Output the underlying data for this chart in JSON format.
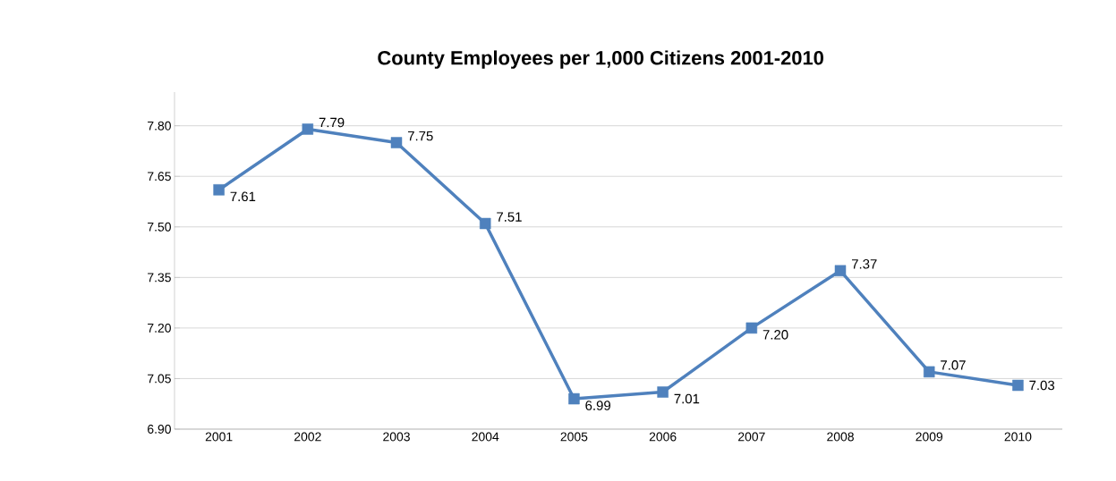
{
  "chart_data": {
    "type": "line",
    "title": "County Employees per 1,000 Citizens 2001-2010",
    "categories": [
      "2001",
      "2002",
      "2003",
      "2004",
      "2005",
      "2006",
      "2007",
      "2008",
      "2009",
      "2010"
    ],
    "values": [
      7.61,
      7.79,
      7.75,
      7.51,
      6.99,
      7.01,
      7.2,
      7.37,
      7.07,
      7.03
    ],
    "value_labels": [
      "7.61",
      "7.79",
      "7.75",
      "7.51",
      "6.99",
      "7.01",
      "7.20",
      "7.37",
      "7.07",
      "7.03"
    ],
    "color": "#4f81bd",
    "marker": "square",
    "line_style": "solid",
    "ylim": [
      6.9,
      7.9
    ],
    "yticks": [
      {
        "value": 6.9,
        "label": "6.90"
      },
      {
        "value": 7.05,
        "label": "7.05"
      },
      {
        "value": 7.2,
        "label": "7.20"
      },
      {
        "value": 7.35,
        "label": "7.35"
      },
      {
        "value": 7.5,
        "label": "7.50"
      },
      {
        "value": 7.65,
        "label": "7.65"
      },
      {
        "value": 7.8,
        "label": "7.80"
      }
    ],
    "grid": "y"
  }
}
